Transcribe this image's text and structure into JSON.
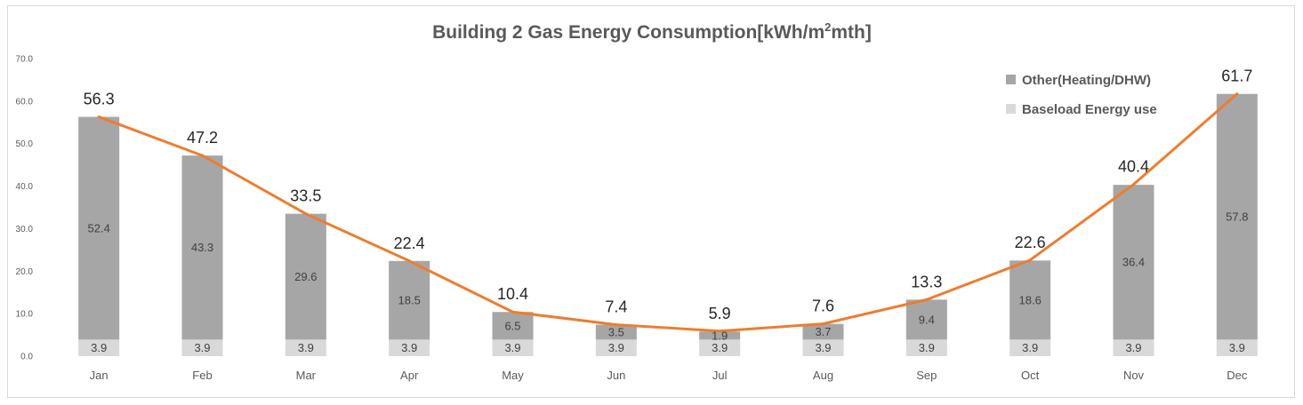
{
  "chart_data": {
    "type": "bar",
    "title": "Building 2 Gas Energy Consumption[kWh/m²mth]",
    "title_main": "Building 2 Gas Energy Consumption[kWh/m",
    "title_sup": "2",
    "title_tail": "mth]",
    "categories": [
      "Jan",
      "Feb",
      "Mar",
      "Apr",
      "May",
      "Jun",
      "Jul",
      "Aug",
      "Sep",
      "Oct",
      "Nov",
      "Dec"
    ],
    "series": [
      {
        "name": "Baseload Energy use",
        "type": "bar",
        "stacked": true,
        "color": "#d9d9d9",
        "values": [
          3.9,
          3.9,
          3.9,
          3.9,
          3.9,
          3.9,
          3.9,
          3.9,
          3.9,
          3.9,
          3.9,
          3.9
        ]
      },
      {
        "name": "Other(Heating/DHW)",
        "type": "bar",
        "stacked": true,
        "color": "#a6a6a6",
        "values": [
          52.4,
          43.3,
          29.6,
          18.5,
          6.5,
          3.5,
          1.9,
          3.7,
          9.4,
          18.6,
          36.4,
          57.8
        ]
      },
      {
        "name": "Total",
        "type": "line",
        "color": "#ed7d31",
        "show_in_legend": false,
        "values": [
          56.3,
          47.2,
          33.5,
          22.4,
          10.4,
          7.4,
          5.9,
          7.6,
          13.3,
          22.6,
          40.4,
          61.7
        ]
      }
    ],
    "y_ticks": [
      "0.0",
      "10.0",
      "20.0",
      "30.0",
      "40.0",
      "50.0",
      "60.0",
      "70.0"
    ],
    "ylim": [
      0,
      70
    ],
    "xlabel": "",
    "ylabel": "",
    "legend": "top-right",
    "grid": false
  }
}
